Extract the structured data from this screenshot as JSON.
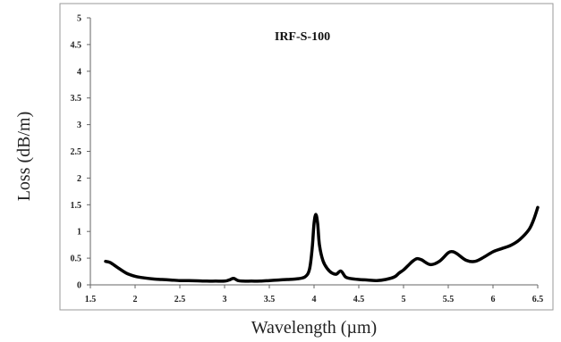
{
  "chart_data": {
    "type": "line",
    "title": "IRF-S-100",
    "xlabel": "Wavelength (µm)",
    "ylabel": "Loss (dB/m)",
    "xlim": [
      1.5,
      6.5
    ],
    "ylim": [
      0,
      5
    ],
    "x_ticks": [
      "1.5",
      "2",
      "2.5",
      "3",
      "3.5",
      "4",
      "4.5",
      "5",
      "5.5",
      "6",
      "6.5"
    ],
    "y_ticks": [
      "0",
      "0.5",
      "1",
      "1.5",
      "2",
      "2.5",
      "3",
      "3.5",
      "4",
      "4.5",
      "5"
    ],
    "grid": false,
    "line_color": "#000000",
    "series": [
      {
        "x": [
          1.67,
          1.72,
          1.8,
          1.9,
          2.0,
          2.1,
          2.2,
          2.3,
          2.4,
          2.5,
          2.6,
          2.7,
          2.8,
          2.9,
          3.0,
          3.05,
          3.1,
          3.15,
          3.2,
          3.3,
          3.4,
          3.5,
          3.6,
          3.7,
          3.8,
          3.9,
          3.95,
          3.98,
          4.0,
          4.02,
          4.04,
          4.06,
          4.1,
          4.15,
          4.2,
          4.25,
          4.3,
          4.35,
          4.4,
          4.5,
          4.6,
          4.7,
          4.8,
          4.9,
          4.95,
          5.0,
          5.05,
          5.1,
          5.15,
          5.2,
          5.3,
          5.4,
          5.5,
          5.55,
          5.6,
          5.7,
          5.8,
          5.9,
          6.0,
          6.1,
          6.2,
          6.3,
          6.4,
          6.45,
          6.5
        ],
        "y": [
          0.44,
          0.42,
          0.33,
          0.22,
          0.16,
          0.13,
          0.11,
          0.1,
          0.09,
          0.08,
          0.08,
          0.075,
          0.07,
          0.07,
          0.07,
          0.09,
          0.12,
          0.08,
          0.07,
          0.07,
          0.07,
          0.08,
          0.09,
          0.1,
          0.11,
          0.15,
          0.3,
          0.7,
          1.15,
          1.32,
          1.15,
          0.75,
          0.45,
          0.3,
          0.22,
          0.2,
          0.26,
          0.15,
          0.12,
          0.1,
          0.09,
          0.08,
          0.1,
          0.15,
          0.22,
          0.28,
          0.36,
          0.44,
          0.49,
          0.47,
          0.38,
          0.44,
          0.6,
          0.62,
          0.58,
          0.46,
          0.44,
          0.52,
          0.62,
          0.68,
          0.74,
          0.85,
          1.03,
          1.2,
          1.45
        ]
      }
    ]
  }
}
